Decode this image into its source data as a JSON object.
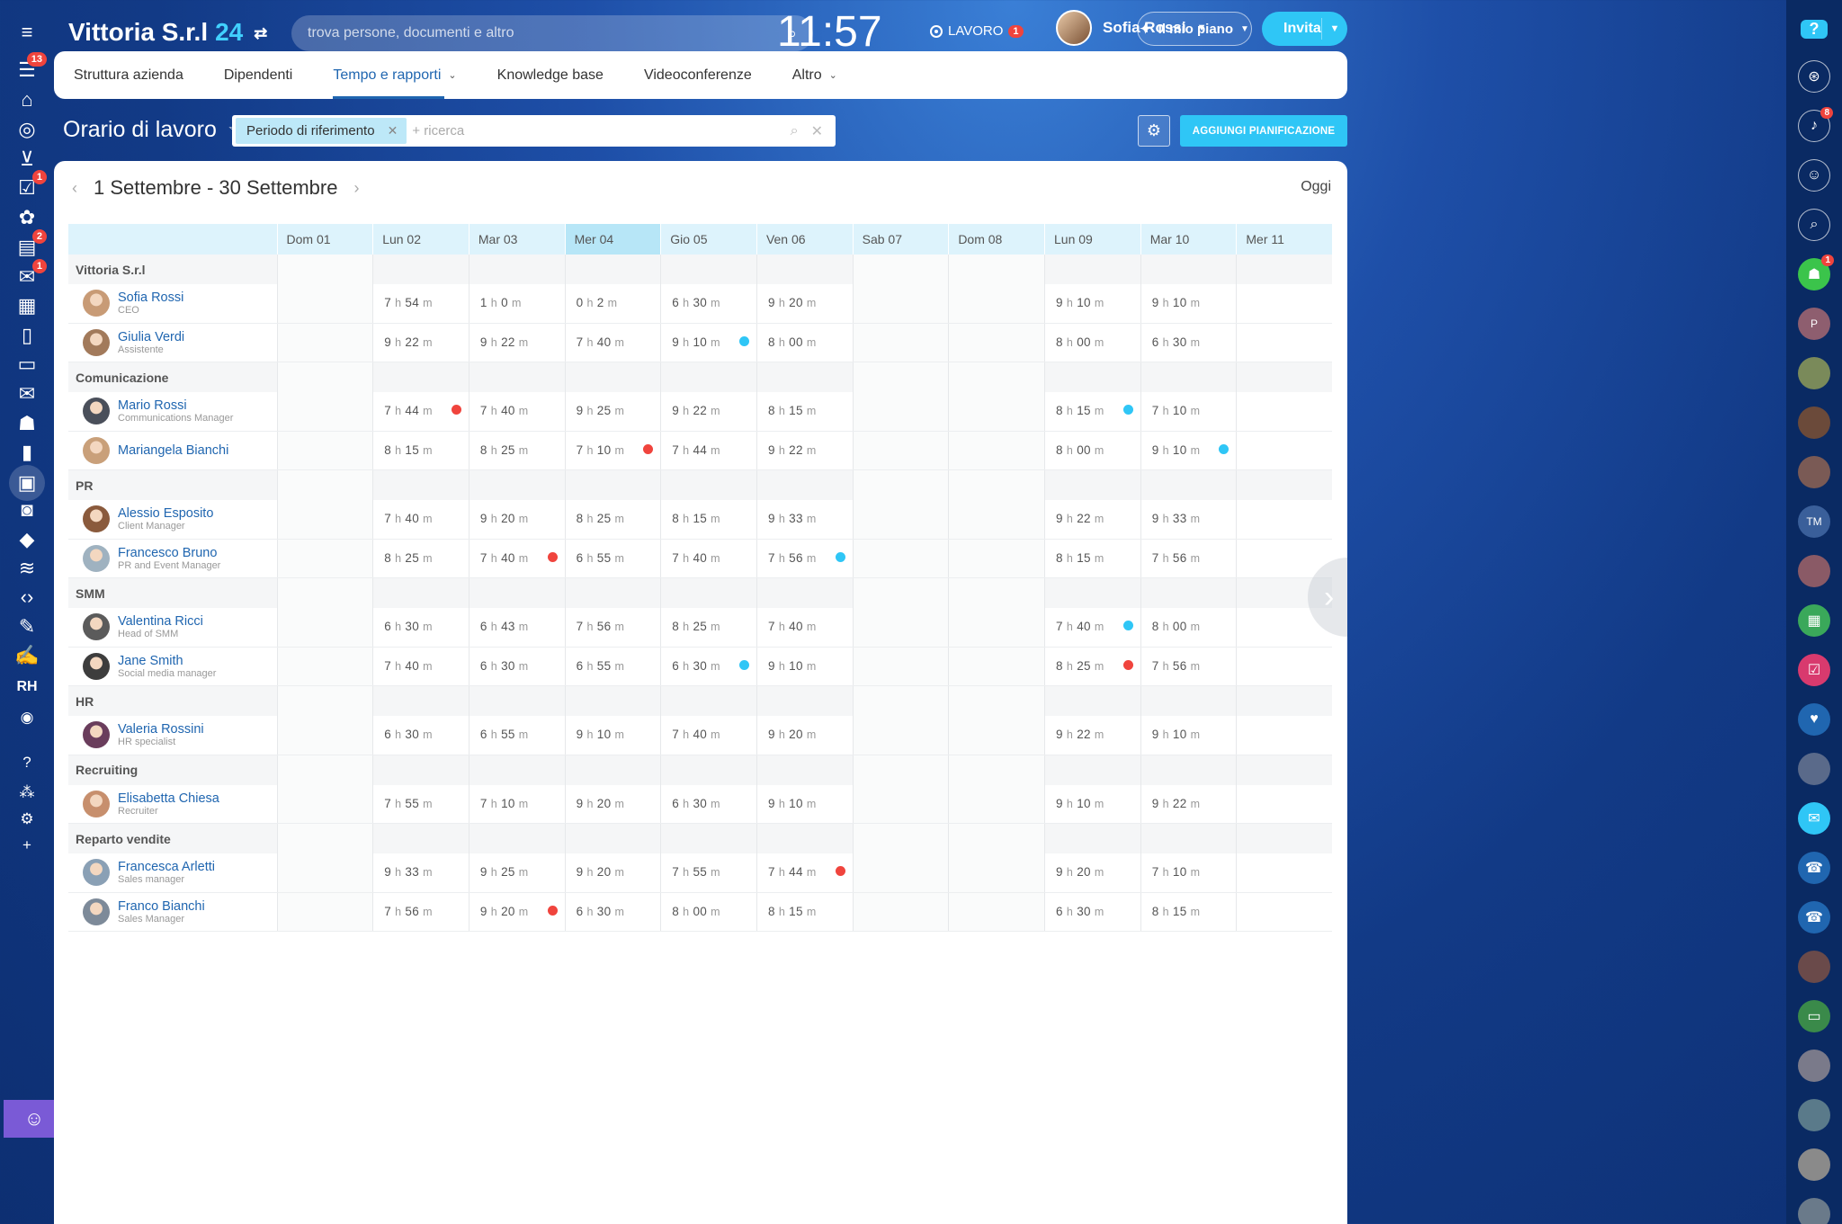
{
  "topbar": {
    "company": "Vittoria S.r.l",
    "company_number": "24",
    "search_placeholder": "trova persone, documenti e altro",
    "clock": "11:57",
    "work_status": "LAVORO",
    "work_status_badge": "1",
    "user_name": "Sofia Rossi",
    "plan_label": "Il mio piano",
    "invite_label": "Invita"
  },
  "left_sidebar": {
    "items": [
      {
        "icon": "menu-icon",
        "badge": ""
      },
      {
        "icon": "feed-icon",
        "badge": "13"
      },
      {
        "icon": "home-icon",
        "badge": ""
      },
      {
        "icon": "target-icon",
        "badge": ""
      },
      {
        "icon": "cart-icon",
        "badge": ""
      },
      {
        "icon": "tasks-icon",
        "badge": "1"
      },
      {
        "icon": "crm-icon",
        "badge": ""
      },
      {
        "icon": "inbox-icon",
        "badge": "2"
      },
      {
        "icon": "chat-icon",
        "badge": "1"
      },
      {
        "icon": "calendar-icon",
        "badge": ""
      },
      {
        "icon": "document-icon",
        "badge": ""
      },
      {
        "icon": "drive-icon",
        "badge": ""
      },
      {
        "icon": "mail-icon",
        "badge": ""
      },
      {
        "icon": "group-icon",
        "badge": ""
      },
      {
        "icon": "chart-icon",
        "badge": ""
      },
      {
        "icon": "timeman-icon",
        "badge": ""
      },
      {
        "icon": "robot-icon",
        "badge": ""
      },
      {
        "icon": "box-icon",
        "badge": ""
      },
      {
        "icon": "sign-icon",
        "badge": ""
      },
      {
        "icon": "code-icon",
        "badge": ""
      },
      {
        "icon": "form-icon",
        "badge": ""
      },
      {
        "icon": "pen-icon",
        "badge": ""
      }
    ],
    "rh_label": "RH"
  },
  "nav_tabs": [
    {
      "label": "Struttura azienda",
      "active": false,
      "dropdown": false
    },
    {
      "label": "Dipendenti",
      "active": false,
      "dropdown": false
    },
    {
      "label": "Tempo e rapporti",
      "active": true,
      "dropdown": true
    },
    {
      "label": "Knowledge base",
      "active": false,
      "dropdown": false
    },
    {
      "label": "Videoconferenze",
      "active": false,
      "dropdown": false
    },
    {
      "label": "Altro",
      "active": false,
      "dropdown": true
    }
  ],
  "page": {
    "title": "Orario di lavoro",
    "filter_chip": "Periodo di riferimento",
    "filter_placeholder": "+ ricerca",
    "add_button": "AGGIUNGI PIANIFICAZIONE",
    "period": "1 Settembre - 30 Settembre",
    "today": "Oggi"
  },
  "days": [
    {
      "label": "Dom 01",
      "weekend": true,
      "today": false
    },
    {
      "label": "Lun 02",
      "weekend": false,
      "today": false
    },
    {
      "label": "Mar 03",
      "weekend": false,
      "today": false
    },
    {
      "label": "Mer 04",
      "weekend": false,
      "today": true
    },
    {
      "label": "Gio 05",
      "weekend": false,
      "today": false
    },
    {
      "label": "Ven 06",
      "weekend": false,
      "today": false
    },
    {
      "label": "Sab 07",
      "weekend": true,
      "today": false
    },
    {
      "label": "Dom 08",
      "weekend": true,
      "today": false
    },
    {
      "label": "Lun 09",
      "weekend": false,
      "today": false
    },
    {
      "label": "Mar 10",
      "weekend": false,
      "today": false
    },
    {
      "label": "Mer 11",
      "weekend": false,
      "today": false
    }
  ],
  "groups": [
    {
      "name": "Vittoria S.r.l",
      "employees": [
        {
          "name": "Sofia Rossi",
          "role": "CEO",
          "avatar": "#c89b76",
          "hours": [
            null,
            [
              "7",
              "54"
            ],
            [
              "1",
              "0"
            ],
            [
              "0",
              "2"
            ],
            [
              "6",
              "30"
            ],
            [
              "9",
              "20"
            ],
            null,
            null,
            [
              "9",
              "10"
            ],
            [
              "9",
              "10"
            ],
            null
          ],
          "flags": [
            null,
            null,
            null,
            null,
            null,
            null,
            null,
            null,
            null,
            null,
            null
          ]
        },
        {
          "name": "Giulia Verdi",
          "role": "Assistente",
          "avatar": "#a27a5b",
          "hours": [
            null,
            [
              "9",
              "22"
            ],
            [
              "9",
              "22"
            ],
            [
              "7",
              "40"
            ],
            [
              "9",
              "10"
            ],
            [
              "8",
              "00"
            ],
            null,
            null,
            [
              "8",
              "00"
            ],
            [
              "6",
              "30"
            ],
            null
          ],
          "flags": [
            null,
            null,
            null,
            null,
            "blue",
            null,
            null,
            null,
            null,
            null,
            null
          ]
        }
      ]
    },
    {
      "name": "Comunicazione",
      "employees": [
        {
          "name": "Mario Rossi",
          "role": "Communications Manager",
          "avatar": "#4a4f5a",
          "hours": [
            null,
            [
              "7",
              "44"
            ],
            [
              "7",
              "40"
            ],
            [
              "9",
              "25"
            ],
            [
              "9",
              "22"
            ],
            [
              "8",
              "15"
            ],
            null,
            null,
            [
              "8",
              "15"
            ],
            [
              "7",
              "10"
            ],
            null
          ],
          "flags": [
            null,
            "red",
            null,
            null,
            null,
            null,
            null,
            null,
            "blue",
            null,
            null
          ]
        },
        {
          "name": "Mariangela Bianchi",
          "role": "",
          "avatar": "#c9a07a",
          "hours": [
            null,
            [
              "8",
              "15"
            ],
            [
              "8",
              "25"
            ],
            [
              "7",
              "10"
            ],
            [
              "7",
              "44"
            ],
            [
              "9",
              "22"
            ],
            null,
            null,
            [
              "8",
              "00"
            ],
            [
              "9",
              "10"
            ],
            null
          ],
          "flags": [
            null,
            null,
            null,
            "red",
            null,
            null,
            null,
            null,
            null,
            "blue",
            null
          ]
        }
      ]
    },
    {
      "name": "PR",
      "employees": [
        {
          "name": "Alessio Esposito",
          "role": "Client Manager",
          "avatar": "#8a5a3c",
          "hours": [
            null,
            [
              "7",
              "40"
            ],
            [
              "9",
              "20"
            ],
            [
              "8",
              "25"
            ],
            [
              "8",
              "15"
            ],
            [
              "9",
              "33"
            ],
            null,
            null,
            [
              "9",
              "22"
            ],
            [
              "9",
              "33"
            ],
            null
          ],
          "flags": [
            null,
            null,
            null,
            null,
            null,
            null,
            null,
            null,
            null,
            null,
            null
          ]
        },
        {
          "name": "Francesco Bruno",
          "role": "PR and Event Manager",
          "avatar": "#9fb2c0",
          "hours": [
            null,
            [
              "8",
              "25"
            ],
            [
              "7",
              "40"
            ],
            [
              "6",
              "55"
            ],
            [
              "7",
              "40"
            ],
            [
              "7",
              "56"
            ],
            null,
            null,
            [
              "8",
              "15"
            ],
            [
              "7",
              "56"
            ],
            null
          ],
          "flags": [
            null,
            null,
            "red",
            null,
            null,
            "blue",
            null,
            null,
            null,
            null,
            null
          ]
        }
      ]
    },
    {
      "name": "SMM",
      "employees": [
        {
          "name": "Valentina Ricci",
          "role": "Head of SMM",
          "avatar": "#5b5b5b",
          "hours": [
            null,
            [
              "6",
              "30"
            ],
            [
              "6",
              "43"
            ],
            [
              "7",
              "56"
            ],
            [
              "8",
              "25"
            ],
            [
              "7",
              "40"
            ],
            null,
            null,
            [
              "7",
              "40"
            ],
            [
              "8",
              "00"
            ],
            null
          ],
          "flags": [
            null,
            null,
            null,
            null,
            null,
            null,
            null,
            null,
            "blue",
            null,
            null
          ]
        },
        {
          "name": "Jane Smith",
          "role": "Social media manager",
          "avatar": "#3d3d3d",
          "hours": [
            null,
            [
              "7",
              "40"
            ],
            [
              "6",
              "30"
            ],
            [
              "6",
              "55"
            ],
            [
              "6",
              "30"
            ],
            [
              "9",
              "10"
            ],
            null,
            null,
            [
              "8",
              "25"
            ],
            [
              "7",
              "56"
            ],
            null
          ],
          "flags": [
            null,
            null,
            null,
            null,
            "blue",
            null,
            null,
            null,
            "red",
            null,
            null
          ]
        }
      ]
    },
    {
      "name": "HR",
      "employees": [
        {
          "name": "Valeria Rossini",
          "role": "HR specialist",
          "avatar": "#6a3d5c",
          "hours": [
            null,
            [
              "6",
              "30"
            ],
            [
              "6",
              "55"
            ],
            [
              "9",
              "10"
            ],
            [
              "7",
              "40"
            ],
            [
              "9",
              "20"
            ],
            null,
            null,
            [
              "9",
              "22"
            ],
            [
              "9",
              "10"
            ],
            null
          ],
          "flags": [
            null,
            null,
            null,
            null,
            null,
            null,
            null,
            null,
            null,
            null,
            null
          ]
        }
      ]
    },
    {
      "name": "Recruiting",
      "employees": [
        {
          "name": "Elisabetta Chiesa",
          "role": "Recruiter",
          "avatar": "#c78f6d",
          "hours": [
            null,
            [
              "7",
              "55"
            ],
            [
              "7",
              "10"
            ],
            [
              "9",
              "20"
            ],
            [
              "6",
              "30"
            ],
            [
              "9",
              "10"
            ],
            null,
            null,
            [
              "9",
              "10"
            ],
            [
              "9",
              "22"
            ],
            null
          ],
          "flags": [
            null,
            null,
            null,
            null,
            null,
            null,
            null,
            null,
            null,
            null,
            null
          ]
        }
      ]
    },
    {
      "name": "Reparto vendite",
      "employees": [
        {
          "name": "Francesca Arletti",
          "role": "Sales manager",
          "avatar": "#8aa0b5",
          "hours": [
            null,
            [
              "9",
              "33"
            ],
            [
              "9",
              "25"
            ],
            [
              "9",
              "20"
            ],
            [
              "7",
              "55"
            ],
            [
              "7",
              "44"
            ],
            null,
            null,
            [
              "9",
              "20"
            ],
            [
              "7",
              "10"
            ],
            null
          ],
          "flags": [
            null,
            null,
            null,
            null,
            null,
            "red",
            null,
            null,
            null,
            null,
            null
          ]
        },
        {
          "name": "Franco Bianchi",
          "role": "Sales Manager",
          "avatar": "#7d8a99",
          "hours": [
            null,
            [
              "7",
              "56"
            ],
            [
              "9",
              "20"
            ],
            [
              "6",
              "30"
            ],
            [
              "8",
              "00"
            ],
            [
              "8",
              "15"
            ],
            null,
            null,
            [
              "6",
              "30"
            ],
            [
              "8",
              "15"
            ],
            null
          ],
          "flags": [
            null,
            null,
            "red",
            null,
            null,
            null,
            null,
            null,
            null,
            null,
            null
          ]
        }
      ]
    }
  ],
  "units": {
    "h": "h",
    "m": "m"
  },
  "right_sidebar": {
    "help": "?",
    "items": [
      {
        "icon": "copilot-icon",
        "color": "#0a2a63",
        "badge": ""
      },
      {
        "icon": "bell-icon",
        "color": "#0a2a63",
        "badge": "8"
      },
      {
        "icon": "messages-icon",
        "color": "#0a2a63",
        "badge": ""
      },
      {
        "icon": "search-icon",
        "color": "#0a2a63",
        "badge": ""
      },
      {
        "icon": "group-chat-icon",
        "color": "#3bc44b",
        "badge": "1"
      },
      {
        "icon": "avatar-p-icon",
        "color": "#8e5e6f",
        "badge": "",
        "text": "P"
      },
      {
        "icon": "avatar-icon",
        "color": "#7a8a5a",
        "badge": ""
      },
      {
        "icon": "avatar-icon",
        "color": "#6b4a3a",
        "badge": ""
      },
      {
        "icon": "avatar-icon",
        "color": "#7a5a55",
        "badge": ""
      },
      {
        "icon": "avatar-tm-icon",
        "color": "#3a5f9a",
        "badge": "",
        "text": "TM"
      },
      {
        "icon": "avatar-icon",
        "color": "#8a5a66",
        "badge": ""
      },
      {
        "icon": "calendar-chat-icon",
        "color": "#3aa85a",
        "badge": ""
      },
      {
        "icon": "task-chat-icon",
        "color": "#d83a6e",
        "badge": ""
      },
      {
        "icon": "like-icon",
        "color": "#2066b0",
        "badge": ""
      },
      {
        "icon": "avatar-icon",
        "color": "#5a6a8a",
        "badge": ""
      },
      {
        "icon": "chat-bubble-icon",
        "color": "#2fc6f6",
        "badge": ""
      },
      {
        "icon": "phone-icon",
        "color": "#2066b0",
        "badge": ""
      },
      {
        "icon": "phone-icon",
        "color": "#2066b0",
        "badge": ""
      },
      {
        "icon": "avatar-icon",
        "color": "#6a4a4a",
        "badge": ""
      },
      {
        "icon": "card-icon",
        "color": "#3a8a4a",
        "badge": ""
      },
      {
        "icon": "avatar-icon",
        "color": "#7a7a8a",
        "badge": ""
      },
      {
        "icon": "avatar-icon",
        "color": "#5a7a8a",
        "badge": ""
      },
      {
        "icon": "avatar-icon",
        "color": "#8a8a8a",
        "badge": ""
      },
      {
        "icon": "avatar-icon",
        "color": "#6a7a8a",
        "badge": ""
      }
    ]
  }
}
